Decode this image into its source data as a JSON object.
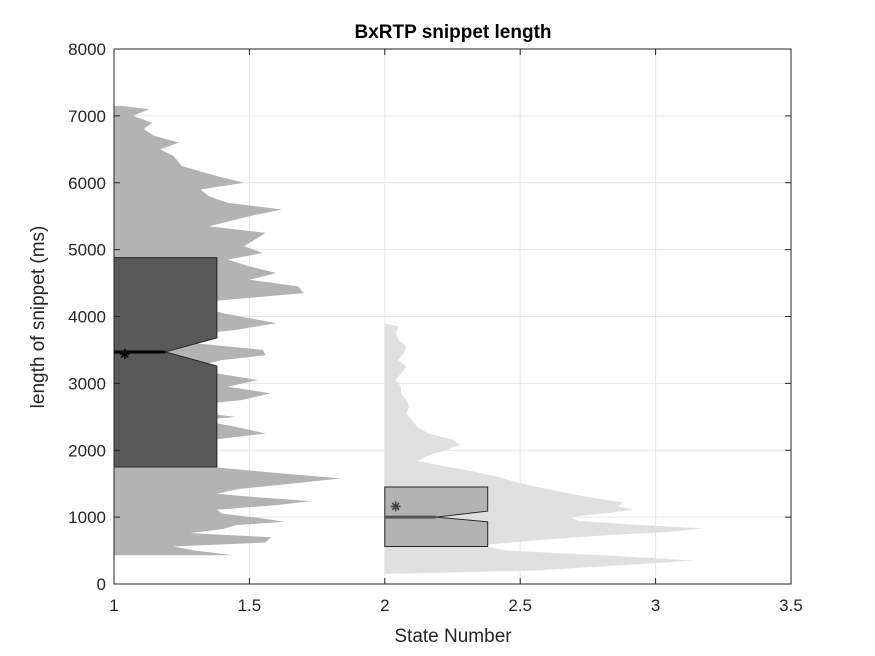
{
  "chart_data": {
    "type": "violin",
    "title": "BxRTP snippet length",
    "xlabel": "State Number",
    "ylabel": "length of snippet (ms)",
    "xlim": [
      1,
      3.5
    ],
    "ylim": [
      0,
      8000
    ],
    "xticks": [
      "1",
      "1.5",
      "2",
      "2.5",
      "3",
      "3.5"
    ],
    "yticks": [
      "0",
      "1000",
      "2000",
      "3000",
      "4000",
      "5000",
      "6000",
      "7000",
      "8000"
    ],
    "grid": true,
    "colors": {
      "violin_1": "#b3b3b3",
      "box_1": "#595959",
      "violin_2": "#e0e0e0",
      "box_2": "#b3b3b3",
      "grid": "#e6e6e6",
      "axis": "#262626"
    },
    "series": [
      {
        "state": 1,
        "density_profile": [
          [
            430,
            1.44
          ],
          [
            500,
            1.3
          ],
          [
            560,
            1.22
          ],
          [
            620,
            1.56
          ],
          [
            700,
            1.58
          ],
          [
            760,
            1.28
          ],
          [
            820,
            1.4
          ],
          [
            880,
            1.45
          ],
          [
            930,
            1.63
          ],
          [
            980,
            1.55
          ],
          [
            1050,
            1.4
          ],
          [
            1110,
            1.38
          ],
          [
            1180,
            1.6
          ],
          [
            1240,
            1.73
          ],
          [
            1300,
            1.52
          ],
          [
            1350,
            1.38
          ],
          [
            1420,
            1.46
          ],
          [
            1490,
            1.63
          ],
          [
            1580,
            1.84
          ],
          [
            1660,
            1.6
          ],
          [
            1750,
            1.36
          ],
          [
            1850,
            1.22
          ],
          [
            1950,
            1.2
          ],
          [
            2050,
            1.26
          ],
          [
            2150,
            1.35
          ],
          [
            2250,
            1.56
          ],
          [
            2350,
            1.45
          ],
          [
            2450,
            1.32
          ],
          [
            2500,
            1.45
          ],
          [
            2560,
            1.32
          ],
          [
            2620,
            1.22
          ],
          [
            2680,
            1.3
          ],
          [
            2750,
            1.47
          ],
          [
            2850,
            1.58
          ],
          [
            2950,
            1.42
          ],
          [
            3050,
            1.53
          ],
          [
            3150,
            1.38
          ],
          [
            3250,
            1.3
          ],
          [
            3350,
            1.4
          ],
          [
            3420,
            1.56
          ],
          [
            3500,
            1.55
          ],
          [
            3600,
            1.3
          ],
          [
            3700,
            1.22
          ],
          [
            3800,
            1.45
          ],
          [
            3900,
            1.6
          ],
          [
            4050,
            1.4
          ],
          [
            4200,
            1.28
          ],
          [
            4350,
            1.7
          ],
          [
            4450,
            1.68
          ],
          [
            4550,
            1.5
          ],
          [
            4650,
            1.6
          ],
          [
            4750,
            1.5
          ],
          [
            4850,
            1.42
          ],
          [
            4950,
            1.55
          ],
          [
            5050,
            1.48
          ],
          [
            5150,
            1.52
          ],
          [
            5250,
            1.56
          ],
          [
            5350,
            1.35
          ],
          [
            5500,
            1.5
          ],
          [
            5600,
            1.62
          ],
          [
            5700,
            1.42
          ],
          [
            5800,
            1.35
          ],
          [
            5900,
            1.32
          ],
          [
            6000,
            1.48
          ],
          [
            6100,
            1.38
          ],
          [
            6250,
            1.25
          ],
          [
            6400,
            1.22
          ],
          [
            6500,
            1.17
          ],
          [
            6600,
            1.24
          ],
          [
            6700,
            1.15
          ],
          [
            6800,
            1.11
          ],
          [
            6900,
            1.14
          ],
          [
            7000,
            1.07
          ],
          [
            7100,
            1.13
          ],
          [
            7150,
            1.03
          ]
        ],
        "box": {
          "q1": 1750,
          "q3": 4880,
          "median": 3470,
          "notch_low": 3260,
          "notch_high": 3680,
          "mean": 3440,
          "right_edge": 1.38,
          "notch_x": 1.19
        }
      },
      {
        "state": 2,
        "density_profile": [
          [
            150,
            2.0
          ],
          [
            200,
            2.55
          ],
          [
            300,
            2.95
          ],
          [
            350,
            3.14
          ],
          [
            420,
            2.85
          ],
          [
            500,
            2.45
          ],
          [
            580,
            2.35
          ],
          [
            650,
            2.55
          ],
          [
            720,
            2.78
          ],
          [
            780,
            3.05
          ],
          [
            830,
            3.18
          ],
          [
            880,
            2.95
          ],
          [
            940,
            2.72
          ],
          [
            1000,
            2.68
          ],
          [
            1060,
            2.82
          ],
          [
            1110,
            2.92
          ],
          [
            1160,
            2.86
          ],
          [
            1220,
            2.88
          ],
          [
            1300,
            2.75
          ],
          [
            1380,
            2.65
          ],
          [
            1460,
            2.55
          ],
          [
            1530,
            2.48
          ],
          [
            1600,
            2.42
          ],
          [
            1680,
            2.33
          ],
          [
            1760,
            2.22
          ],
          [
            1840,
            2.12
          ],
          [
            1920,
            2.16
          ],
          [
            2000,
            2.22
          ],
          [
            2080,
            2.28
          ],
          [
            2160,
            2.25
          ],
          [
            2250,
            2.16
          ],
          [
            2350,
            2.12
          ],
          [
            2450,
            2.1
          ],
          [
            2550,
            2.08
          ],
          [
            2650,
            2.09
          ],
          [
            2750,
            2.08
          ],
          [
            2850,
            2.06
          ],
          [
            2950,
            2.06
          ],
          [
            3050,
            2.04
          ],
          [
            3150,
            2.06
          ],
          [
            3250,
            2.08
          ],
          [
            3350,
            2.05
          ],
          [
            3450,
            2.07
          ],
          [
            3550,
            2.08
          ],
          [
            3650,
            2.05
          ],
          [
            3750,
            2.04
          ],
          [
            3850,
            2.05
          ],
          [
            3900,
            2.0
          ]
        ],
        "box": {
          "q1": 560,
          "q3": 1450,
          "median": 1000,
          "notch_low": 930,
          "notch_high": 1090,
          "mean": 1160,
          "right_edge": 2.38,
          "notch_x": 2.19
        }
      }
    ]
  }
}
